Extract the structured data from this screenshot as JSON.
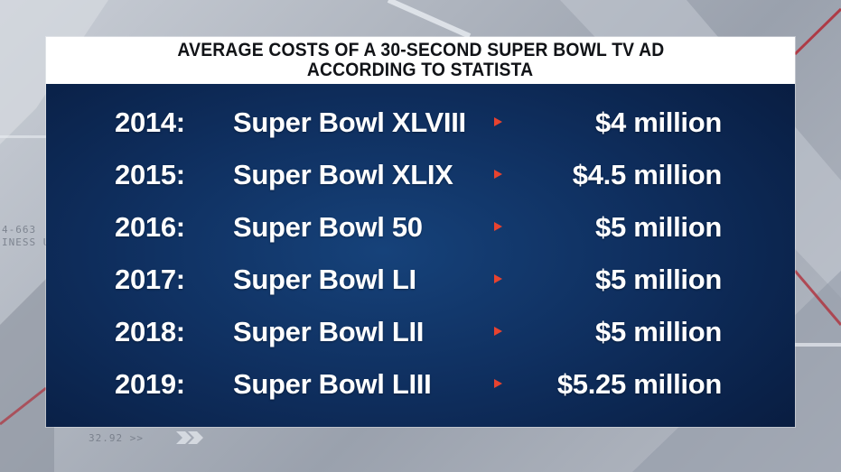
{
  "title": {
    "line1": "AVERAGE COSTS OF A 30-SECOND SUPER BOWL TV AD",
    "line2": "ACCORDING TO STATISTA"
  },
  "background": {
    "ticker_top": "4-663",
    "ticker_mid": "INESS UI",
    "ticker_bottom": "32.92 >>"
  },
  "colors": {
    "panel": "#0f2f5f",
    "title_bg": "#ffffff",
    "arrow": "#e8432f",
    "text": "#ffffff"
  },
  "rows": [
    {
      "year": "2014:",
      "event": "Super Bowl XLVIII",
      "amount": "$4 million",
      "icon": "play-arrow-icon"
    },
    {
      "year": "2015:",
      "event": "Super Bowl XLIX",
      "amount": "$4.5 million",
      "icon": "play-arrow-icon"
    },
    {
      "year": "2016:",
      "event": "Super Bowl 50",
      "amount": "$5 million",
      "icon": "play-arrow-icon"
    },
    {
      "year": "2017:",
      "event": "Super Bowl LI",
      "amount": "$5 million",
      "icon": "play-arrow-icon"
    },
    {
      "year": "2018:",
      "event": "Super Bowl LII",
      "amount": "$5 million",
      "icon": "play-arrow-icon"
    },
    {
      "year": "2019:",
      "event": "Super Bowl LIII",
      "amount": "$5.25 million",
      "icon": "play-arrow-icon"
    }
  ]
}
